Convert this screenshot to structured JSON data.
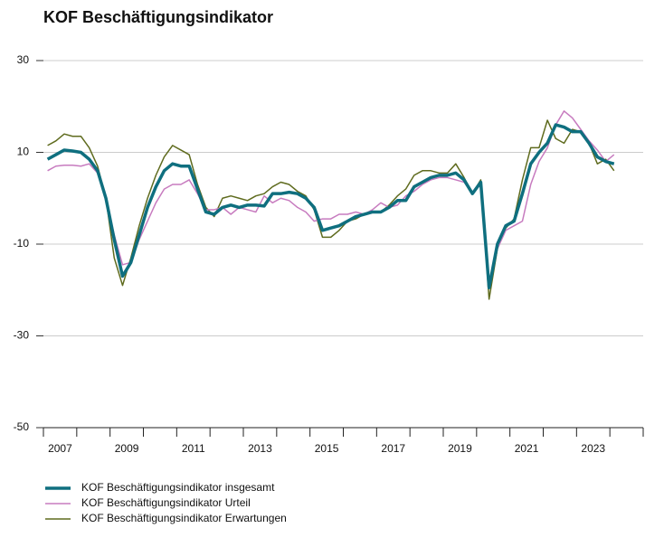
{
  "chart_data": {
    "type": "line",
    "title": "KOF Beschäftigungsindikator",
    "x": [
      2007.125,
      2007.375,
      2007.625,
      2007.875,
      2008.125,
      2008.375,
      2008.625,
      2008.875,
      2009.125,
      2009.375,
      2009.625,
      2009.875,
      2010.125,
      2010.375,
      2010.625,
      2010.875,
      2011.125,
      2011.375,
      2011.625,
      2011.875,
      2012.125,
      2012.375,
      2012.625,
      2012.875,
      2013.125,
      2013.375,
      2013.625,
      2013.875,
      2014.125,
      2014.375,
      2014.625,
      2014.875,
      2015.125,
      2015.375,
      2015.625,
      2015.875,
      2016.125,
      2016.375,
      2016.625,
      2016.875,
      2017.125,
      2017.375,
      2017.625,
      2017.875,
      2018.125,
      2018.375,
      2018.625,
      2018.875,
      2019.125,
      2019.375,
      2019.625,
      2019.875,
      2020.125,
      2020.375,
      2020.625,
      2020.875,
      2021.125,
      2021.375,
      2021.625,
      2021.875,
      2022.125,
      2022.375,
      2022.625,
      2022.875,
      2023.125,
      2023.375,
      2023.625,
      2023.875,
      2024.125
    ],
    "series": [
      {
        "name": "KOF Beschäftigungsindikator insgesamt",
        "color": "#0f6f7f",
        "width": 3.5,
        "values": [
          8.5,
          9.5,
          10.5,
          10.3,
          10,
          8.5,
          6,
          0,
          -9,
          -17,
          -14,
          -8,
          -2,
          2.5,
          6,
          7.5,
          7,
          7,
          2,
          -3,
          -3.5,
          -2,
          -1.5,
          -2,
          -1.5,
          -1.5,
          -1.7,
          1,
          1,
          1.3,
          1,
          0,
          -2,
          -7,
          -6.5,
          -6,
          -5,
          -4,
          -3.5,
          -3,
          -3,
          -2,
          -0.5,
          -0.5,
          2.5,
          3.5,
          4.5,
          5,
          5,
          5.5,
          4,
          1,
          3.5,
          -19.5,
          -10,
          -6,
          -5,
          1,
          7.5,
          10,
          12,
          16,
          15.5,
          14.5,
          14.5,
          12,
          9,
          8,
          7.5
        ]
      },
      {
        "name": "KOF Beschäftigungsindikator Urteil",
        "color": "#c77bbf",
        "width": 1.5,
        "values": [
          6,
          7,
          7.2,
          7.2,
          7,
          7.5,
          5.5,
          0,
          -8,
          -14.5,
          -14,
          -9,
          -5,
          -1,
          2,
          3,
          3,
          4,
          1,
          -2.5,
          -2.5,
          -2,
          -3.5,
          -2,
          -2.5,
          -3,
          0.5,
          -1,
          0,
          -0.5,
          -2,
          -3,
          -5,
          -4.5,
          -4.5,
          -3.5,
          -3.5,
          -3,
          -3.5,
          -2.5,
          -1,
          -2,
          -1.5,
          0.5,
          1.5,
          3,
          4,
          4.5,
          4.5,
          4,
          3.5,
          1,
          3,
          -19,
          -11,
          -7,
          -6,
          -5,
          3,
          8,
          11,
          16,
          19,
          17.5,
          15,
          12.5,
          10.5,
          8,
          9.5
        ]
      },
      {
        "name": "KOF Beschäftigungsindikator Erwartungen",
        "color": "#5f6b1e",
        "width": 1.5,
        "values": [
          11.5,
          12.5,
          14,
          13.5,
          13.5,
          11,
          7,
          0,
          -13,
          -19,
          -13,
          -6,
          0,
          5,
          9,
          11.5,
          10.5,
          9.5,
          3,
          -2,
          -4,
          0,
          0.5,
          0,
          -0.5,
          0.5,
          1,
          2.5,
          3.5,
          3,
          1.5,
          0.5,
          -2.5,
          -8.5,
          -8.5,
          -7,
          -5,
          -4.5,
          -3.5,
          -3,
          -3,
          -1.5,
          0.5,
          2,
          5,
          6,
          6,
          5.5,
          5.5,
          7.5,
          4.5,
          1,
          4,
          -22,
          -11,
          -6.5,
          -4.5,
          4,
          11,
          11,
          17,
          13,
          12,
          15,
          14.5,
          12,
          7.5,
          8.5,
          6
        ]
      }
    ],
    "xlim": [
      2007,
      2025
    ],
    "xticks": [
      2007,
      2009,
      2011,
      2013,
      2015,
      2017,
      2019,
      2021,
      2023
    ],
    "ylim": [
      -50,
      30
    ],
    "yticks": [
      -50,
      -30,
      -10,
      10,
      30
    ],
    "grid": true,
    "legend": "bottom"
  }
}
